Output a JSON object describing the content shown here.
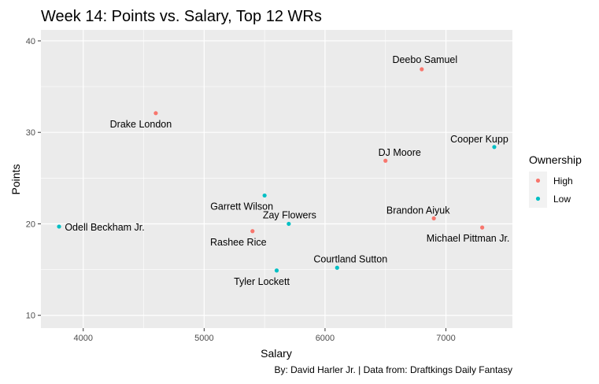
{
  "chart_data": {
    "type": "scatter",
    "title": "Week 14: Points vs. Salary, Top 12 WRs",
    "xlabel": "Salary",
    "ylabel": "Points",
    "caption": "By: David Harler Jr. | Data from: Draftkings Daily Fantasy",
    "xlim": [
      3650,
      7550
    ],
    "ylim": [
      8.6,
      41.2
    ],
    "x_ticks": [
      4000,
      5000,
      6000,
      7000
    ],
    "y_ticks": [
      10,
      20,
      30,
      40
    ],
    "grid": true,
    "legend_title": "Ownership",
    "legend_position": "right",
    "series": [
      {
        "name": "High",
        "color": "#F8766D"
      },
      {
        "name": "Low",
        "color": "#00BFC4"
      }
    ],
    "points": [
      {
        "label": "Deebo Samuel",
        "x": 6800,
        "y": 36.9,
        "ownership": "High"
      },
      {
        "label": "Drake London",
        "x": 4600,
        "y": 32.1,
        "ownership": "High"
      },
      {
        "label": "Cooper Kupp",
        "x": 7400,
        "y": 28.4,
        "ownership": "Low"
      },
      {
        "label": "DJ Moore",
        "x": 6500,
        "y": 26.9,
        "ownership": "High"
      },
      {
        "label": "Garrett Wilson",
        "x": 5500,
        "y": 23.1,
        "ownership": "Low"
      },
      {
        "label": "Brandon Aiyuk",
        "x": 6900,
        "y": 20.6,
        "ownership": "High"
      },
      {
        "label": "Zay Flowers",
        "x": 5700,
        "y": 20.0,
        "ownership": "Low"
      },
      {
        "label": "Odell Beckham Jr.",
        "x": 3800,
        "y": 19.7,
        "ownership": "Low"
      },
      {
        "label": "Michael Pittman Jr.",
        "x": 7300,
        "y": 19.6,
        "ownership": "High"
      },
      {
        "label": "Rashee Rice",
        "x": 5400,
        "y": 19.2,
        "ownership": "High"
      },
      {
        "label": "Courtland Sutton",
        "x": 6100,
        "y": 15.2,
        "ownership": "Low"
      },
      {
        "label": "Tyler Lockett",
        "x": 5600,
        "y": 14.9,
        "ownership": "Low"
      }
    ]
  }
}
